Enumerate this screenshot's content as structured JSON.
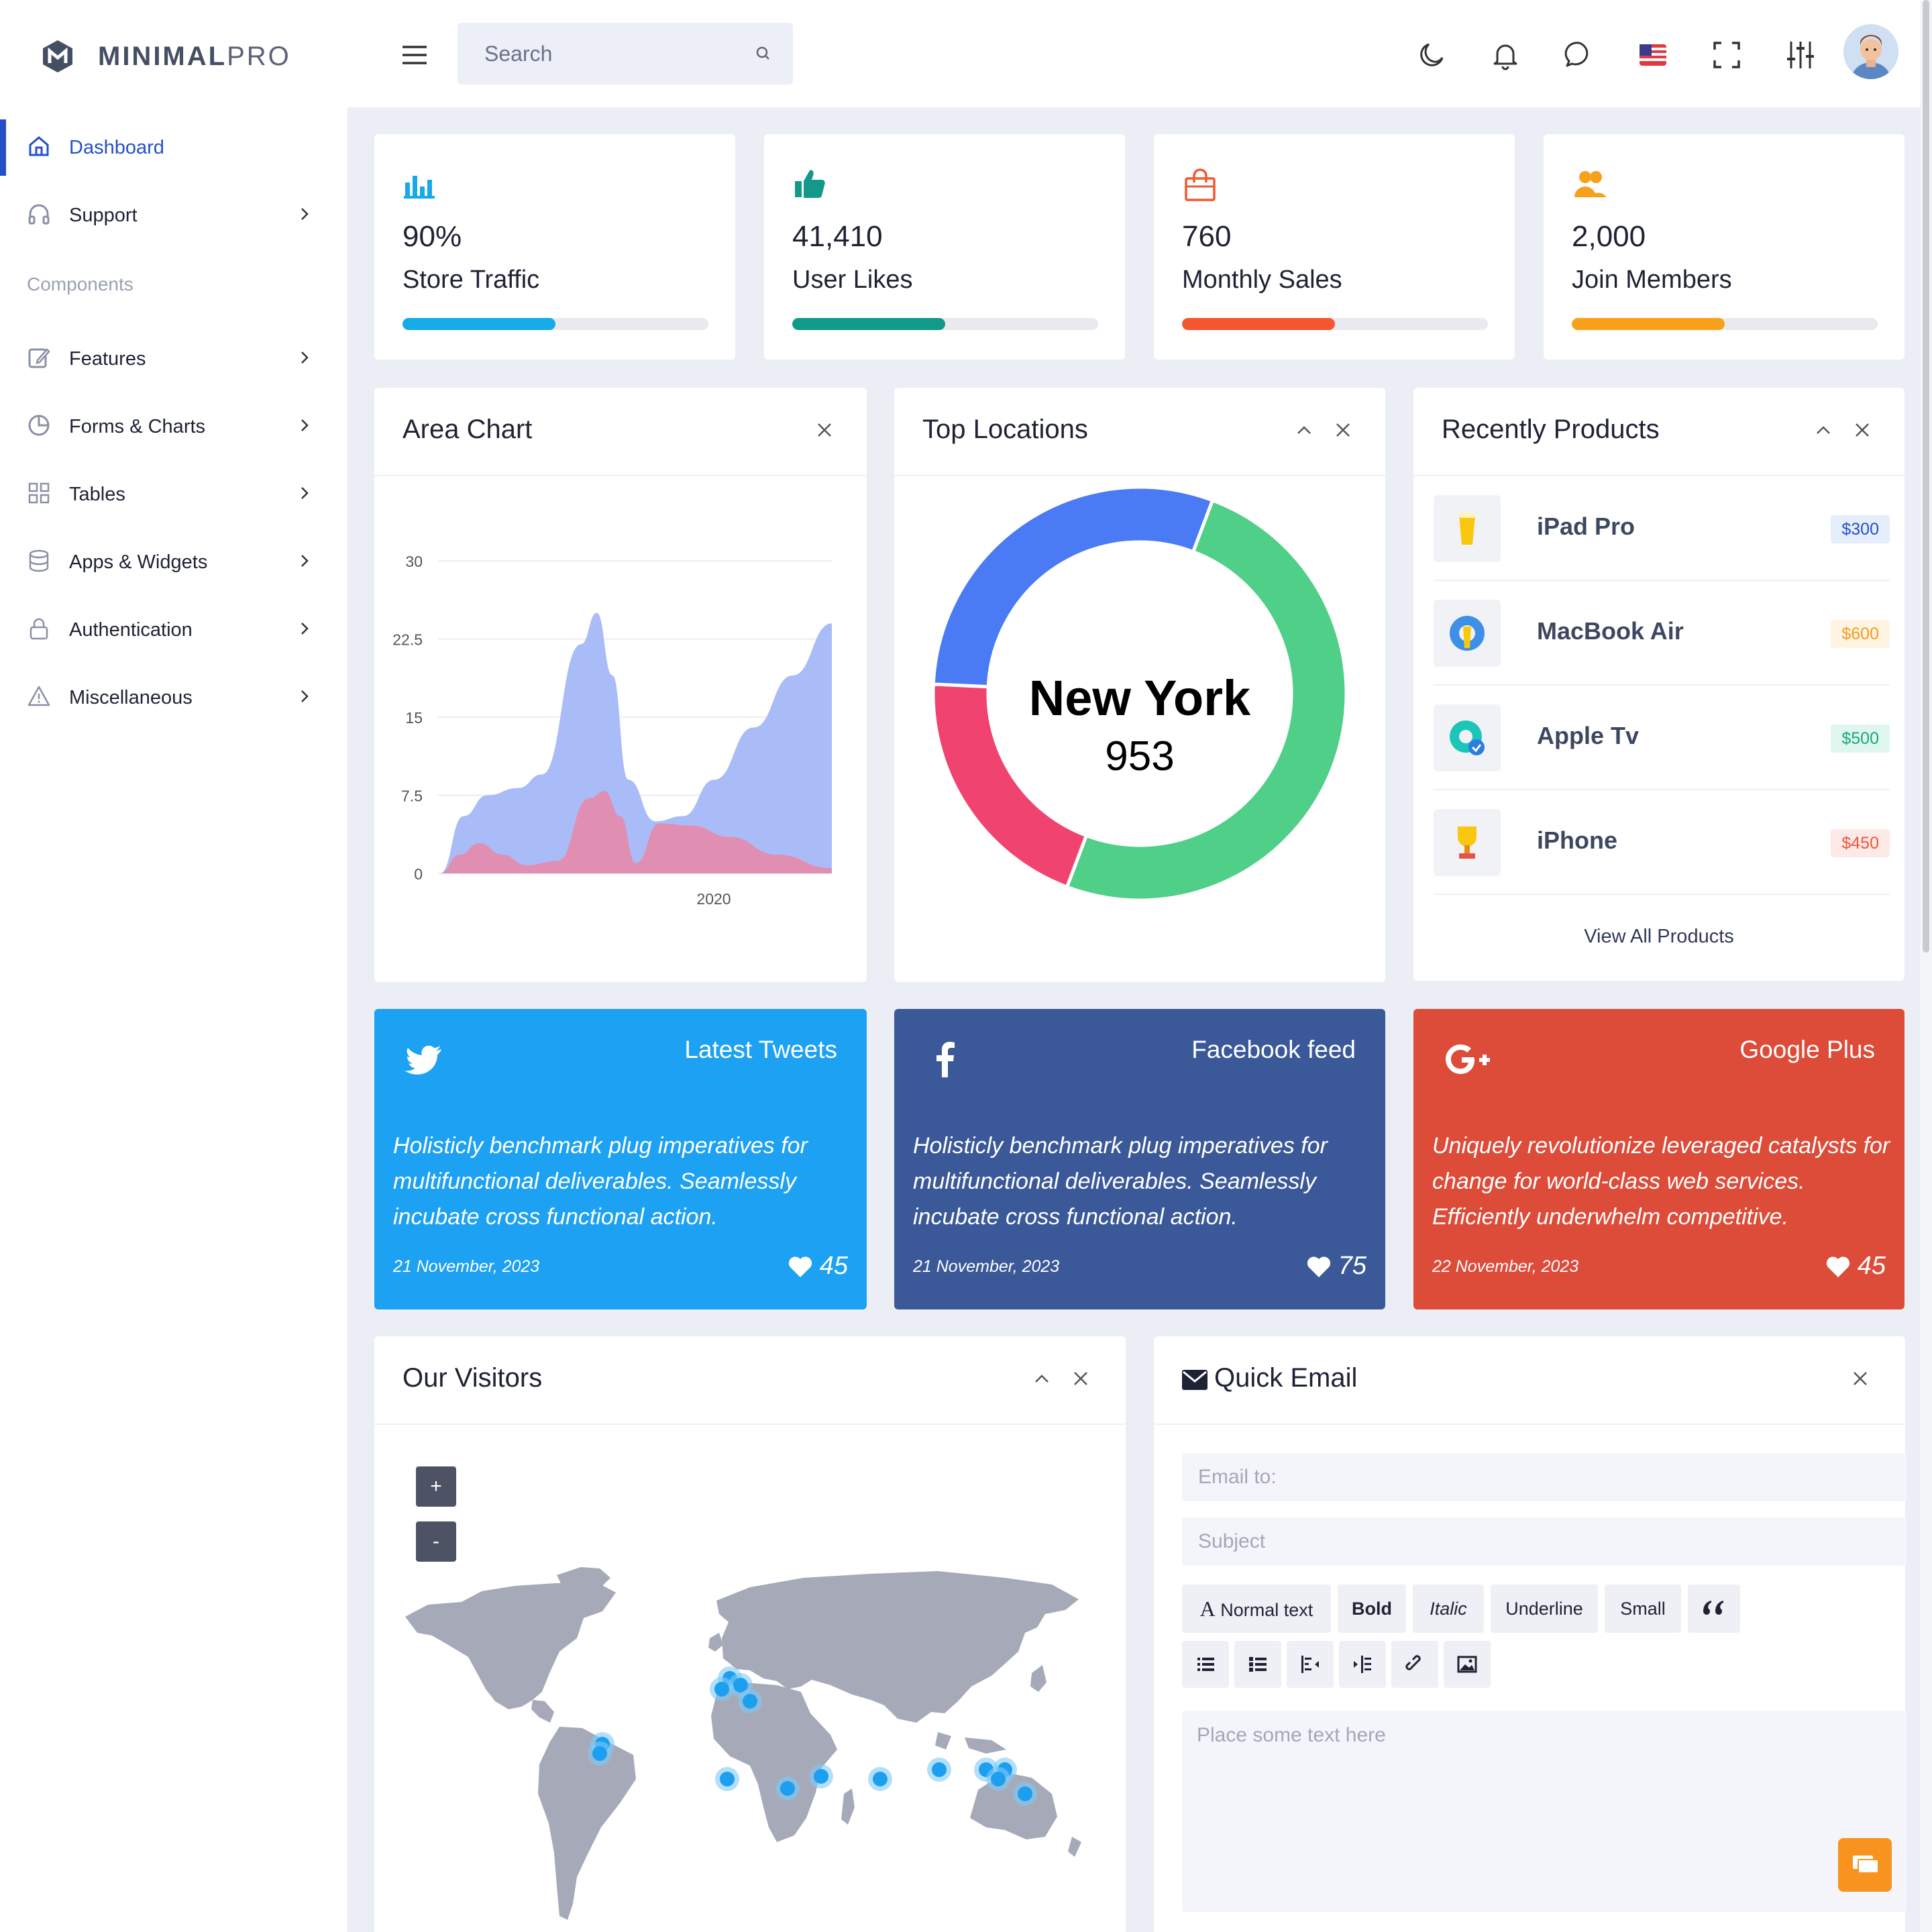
{
  "brand": {
    "name_bold": "MINIMAL",
    "name_light": "PRO"
  },
  "sidebar": {
    "items": [
      {
        "label": "Dashboard"
      },
      {
        "label": "Support"
      },
      {
        "label": "Features"
      },
      {
        "label": "Forms & Charts"
      },
      {
        "label": "Tables"
      },
      {
        "label": "Apps & Widgets"
      },
      {
        "label": "Authentication"
      },
      {
        "label": "Miscellaneous"
      }
    ],
    "section_label": "Components"
  },
  "header": {
    "search_placeholder": "Search"
  },
  "stats": [
    {
      "value": "90%",
      "label": "Store Traffic",
      "progress": 0.5,
      "color": "#16aae8"
    },
    {
      "value": "41,410",
      "label": "User Likes",
      "progress": 0.5,
      "color": "#12998a"
    },
    {
      "value": "760",
      "label": "Monthly Sales",
      "progress": 0.5,
      "color": "#f45730"
    },
    {
      "value": "2,000",
      "label": "Join Members",
      "progress": 0.5,
      "color": "#f7a01c"
    }
  ],
  "area_chart": {
    "title": "Area Chart"
  },
  "chart_data": [
    {
      "type": "area",
      "title": "Area Chart",
      "x_ticks": [
        "2020"
      ],
      "y_ticks": [
        "30",
        "22.5",
        "15",
        "7.5",
        "0"
      ],
      "ylim": [
        0,
        30
      ],
      "series": [
        {
          "color": "#a4b8f7",
          "x": [
            0,
            0.06,
            0.12,
            0.2,
            0.26,
            0.36,
            0.4,
            0.44,
            0.48,
            0.55,
            0.62,
            0.7,
            0.8,
            0.9,
            1.0
          ],
          "values": [
            0,
            5.5,
            7.5,
            8.2,
            9.5,
            22,
            25,
            19,
            9,
            5,
            5.5,
            9,
            14,
            19,
            24
          ]
        },
        {
          "color": "#e58aab",
          "x": [
            0,
            0.05,
            0.1,
            0.16,
            0.22,
            0.3,
            0.38,
            0.42,
            0.46,
            0.5,
            0.56,
            0.64,
            0.74,
            0.86,
            1.0
          ],
          "values": [
            0,
            1.8,
            2.9,
            1.8,
            0.8,
            1.2,
            7.2,
            7.9,
            5.5,
            1,
            4.8,
            4.6,
            3.5,
            1.8,
            0.5
          ]
        }
      ]
    },
    {
      "type": "pie",
      "title": "Top Locations",
      "center_label": "New York",
      "center_value": "953",
      "slices": [
        {
          "value": 50,
          "color": "#4fcf87"
        },
        {
          "value": 20,
          "color": "#f0436f"
        },
        {
          "value": 30,
          "color": "#4a7bf5"
        }
      ]
    }
  ],
  "top_locations": {
    "title": "Top Locations",
    "center_label": "New York",
    "center_value": "953"
  },
  "products": {
    "title": "Recently Products",
    "items": [
      {
        "name": "iPad Pro",
        "price": "$300",
        "bg": "#e5eefc",
        "fg": "#2450c7"
      },
      {
        "name": "MacBook Air",
        "price": "$600",
        "bg": "#fff3e2",
        "fg": "#f59b24"
      },
      {
        "name": "Apple Tv",
        "price": "$500",
        "bg": "#e0f7ef",
        "fg": "#17a977"
      },
      {
        "name": "iPhone",
        "price": "$450",
        "bg": "#fde9e6",
        "fg": "#f0553c"
      }
    ],
    "view_all": "View All Products"
  },
  "social": [
    {
      "title": "Latest Tweets",
      "text": "Holisticly benchmark plug imperatives for multifunctional deliverables. Seamlessly incubate cross functional action.",
      "date": "21 November, 2023",
      "likes": "45",
      "color": "#1da1f2",
      "icon": "twitter-icon"
    },
    {
      "title": "Facebook feed",
      "text": "Holisticly benchmark plug imperatives for multifunctional deliverables. Seamlessly incubate cross functional action.",
      "date": "21 November, 2023",
      "likes": "75",
      "color": "#3b5998",
      "icon": "facebook-icon"
    },
    {
      "title": "Google Plus",
      "text": "Uniquely revolutionize leveraged catalysts for change for world-class web services. Efficiently underwhelm competitive.",
      "date": "22 November, 2023",
      "likes": "45",
      "color": "#dd4b39",
      "icon": "google-plus-icon"
    }
  ],
  "visitors": {
    "title": "Our Visitors",
    "zoom_in": "+",
    "zoom_out": "-"
  },
  "email": {
    "title": "Quick Email",
    "to_placeholder": "Email to:",
    "subject_placeholder": "Subject",
    "body_placeholder": "Place some text here",
    "format_buttons": [
      "Normal text",
      "Bold",
      "Italic",
      "Underline",
      "Small"
    ]
  }
}
